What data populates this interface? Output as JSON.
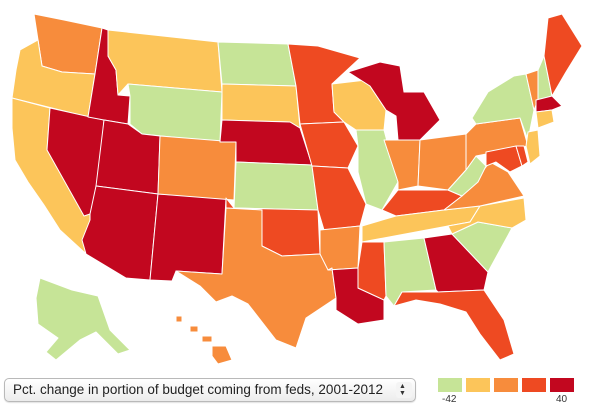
{
  "map": {
    "title": "Pct. change in portion of budget coming from feds, 2001-2012",
    "colors": {
      "c1": "#c6e497",
      "c2": "#fcc55a",
      "c3": "#f78c3c",
      "c4": "#ee4a22",
      "c5": "#c2071f"
    },
    "states": {
      "WA": "c3",
      "OR": "c2",
      "CA": "c2",
      "NV": "c5",
      "ID": "c5",
      "MT": "c2",
      "WY": "c1",
      "UT": "c5",
      "AZ": "c5",
      "NM": "c5",
      "CO": "c3",
      "ND": "c1",
      "SD": "c2",
      "NE": "c5",
      "KS": "c1",
      "OK": "c4",
      "TX": "c3",
      "MN": "c4",
      "IA": "c4",
      "MO": "c4",
      "AR": "c3",
      "LA": "c5",
      "WI": "c2",
      "IL": "c1",
      "MS": "c4",
      "MI": "c5",
      "IN": "c3",
      "OH": "c3",
      "KY": "c4",
      "TN": "c2",
      "AL": "c1",
      "GA": "c5",
      "FL": "c4",
      "SC": "c1",
      "NC": "c2",
      "VA": "c3",
      "WV": "c1",
      "PA": "c3",
      "NY": "c1",
      "VT": "c3",
      "NH": "c1",
      "ME": "c4",
      "MA": "c5",
      "CT": "c2",
      "NJ": "c2",
      "MD": "c4",
      "DE": "c4",
      "AK": "c1",
      "HI": "c3"
    }
  },
  "selector": {
    "label": "Pct. change in portion of budget coming from feds, 2001-2012",
    "arrow_up": "▲",
    "arrow_down": "▼"
  },
  "legend": {
    "colors": [
      "#c6e497",
      "#fcc55a",
      "#f78c3c",
      "#ee4a22",
      "#c2071f"
    ],
    "min_label": "-42",
    "max_label": "40"
  }
}
